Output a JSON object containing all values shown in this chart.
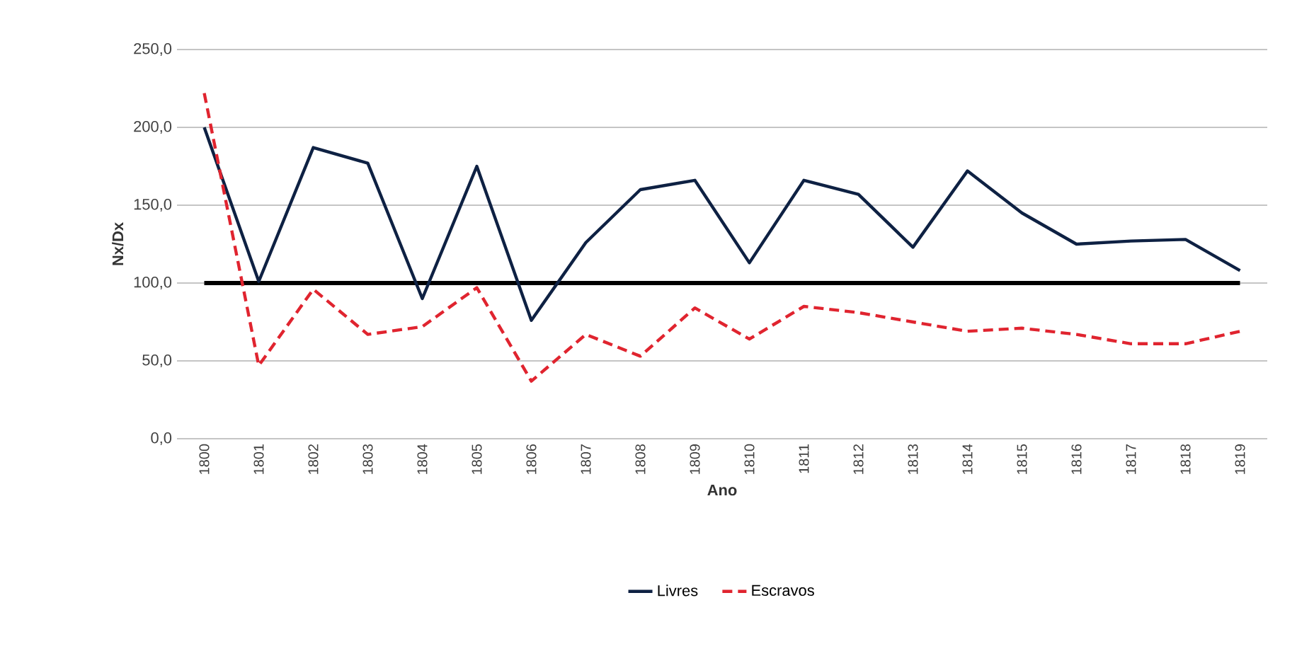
{
  "chart_data": {
    "type": "line",
    "xlabel": "Ano",
    "ylabel": "Nx/Dx",
    "categories": [
      "1800",
      "1801",
      "1802",
      "1803",
      "1804",
      "1805",
      "1806",
      "1807",
      "1808",
      "1809",
      "1810",
      "1811",
      "1812",
      "1813",
      "1814",
      "1815",
      "1816",
      "1817",
      "1818",
      "1819"
    ],
    "series": [
      {
        "name": "Livres",
        "color": "#0e2143",
        "line_style": "solid",
        "values": [
          200,
          101,
          187,
          177,
          90,
          175,
          76,
          126,
          160,
          166,
          113,
          166,
          157,
          123,
          172,
          145,
          125,
          127,
          128,
          108
        ]
      },
      {
        "name": "Escravos",
        "color": "#e0242f",
        "line_style": "dashed",
        "values": [
          222,
          47,
          96,
          67,
          72,
          97,
          37,
          67,
          53,
          84,
          64,
          85,
          81,
          75,
          69,
          71,
          67,
          61,
          61,
          69
        ]
      }
    ],
    "ylim": [
      0,
      250
    ],
    "yticks": [
      {
        "value": 0,
        "label": "0,0"
      },
      {
        "value": 50,
        "label": "50,0"
      },
      {
        "value": 100,
        "label": "100,0"
      },
      {
        "value": 150,
        "label": "150,0"
      },
      {
        "value": 200,
        "label": "200,0"
      },
      {
        "value": 250,
        "label": "250,0"
      }
    ],
    "ref_lines": [
      {
        "axis": "y",
        "value": 100,
        "color": "#000000"
      }
    ],
    "grid": "y",
    "legend": "bottom",
    "marker": "none"
  }
}
